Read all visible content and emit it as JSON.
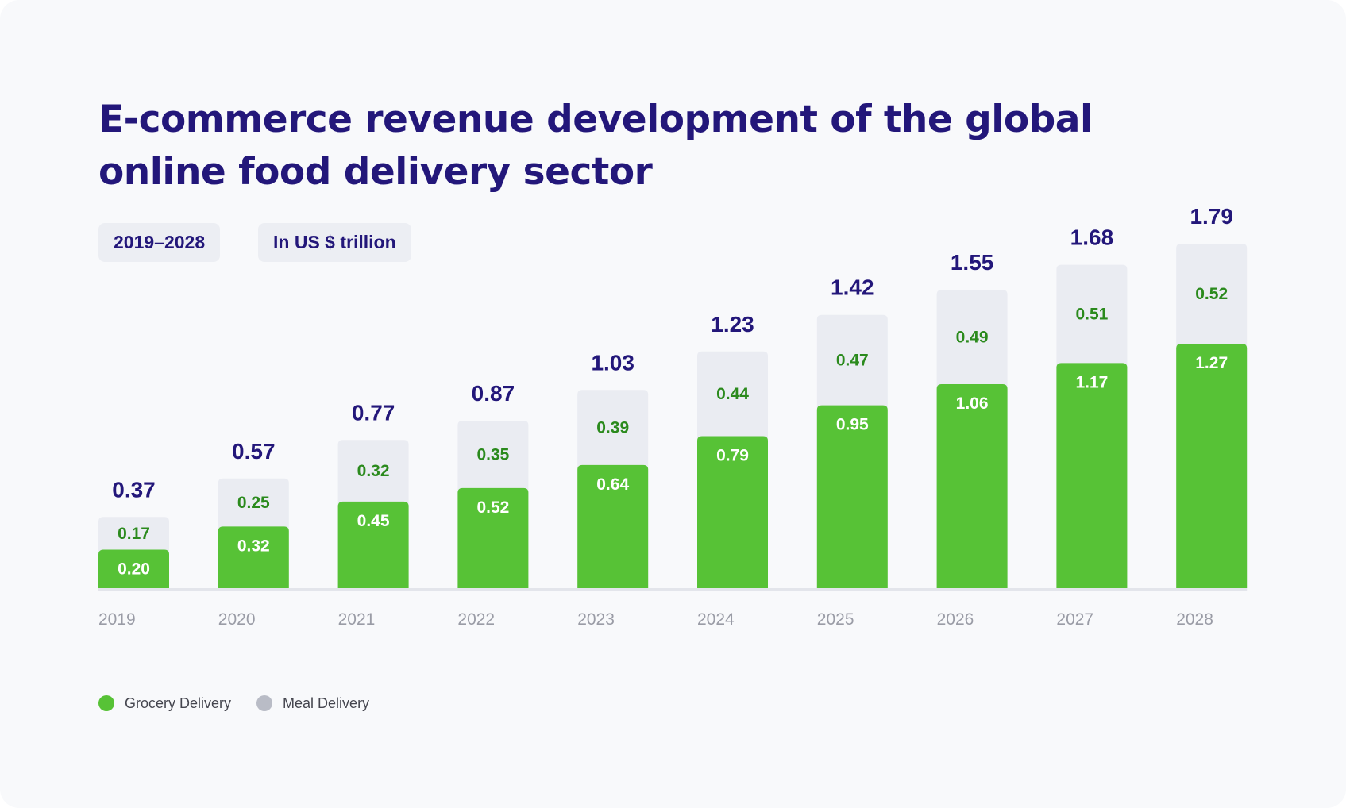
{
  "title_line1": "E-commerce revenue development of the global",
  "title_line2": "online food delivery sector",
  "chips": {
    "period": "2019–2028",
    "unit": "In US $ trillion"
  },
  "colors": {
    "grocery": "#57c236",
    "meal": "#eaecf2",
    "meal_legend": "#b9bcc6",
    "total_label": "#23177a",
    "meal_label": "#2b8a1d",
    "grocery_label": "#ffffff",
    "tick_label": "#9a9ca6",
    "baseline": "#e3e5eb"
  },
  "chart_data": {
    "type": "bar",
    "stacked": true,
    "categories": [
      "2019",
      "2020",
      "2021",
      "2022",
      "2023",
      "2024",
      "2025",
      "2026",
      "2027",
      "2028"
    ],
    "series": [
      {
        "name": "Grocery Delivery",
        "values": [
          0.2,
          0.32,
          0.45,
          0.52,
          0.64,
          0.79,
          0.95,
          1.06,
          1.17,
          1.27
        ],
        "labels": [
          "0.20",
          "0.32",
          "0.45",
          "0.52",
          "0.64",
          "0.79",
          "0.95",
          "1.06",
          "1.17",
          "1.27"
        ]
      },
      {
        "name": "Meal Delivery",
        "values": [
          0.17,
          0.25,
          0.32,
          0.35,
          0.39,
          0.44,
          0.47,
          0.49,
          0.51,
          0.52
        ],
        "labels": [
          "0.17",
          "0.25",
          "0.32",
          "0.35",
          "0.39",
          "0.44",
          "0.47",
          "0.49",
          "0.51",
          "0.52"
        ]
      }
    ],
    "totals": [
      "0.37",
      "0.57",
      "0.77",
      "0.87",
      "1.03",
      "1.23",
      "1.42",
      "1.55",
      "1.68",
      "1.79"
    ],
    "ylim": [
      0,
      1.79
    ],
    "legend_position": "bottom-left",
    "grid": false
  }
}
